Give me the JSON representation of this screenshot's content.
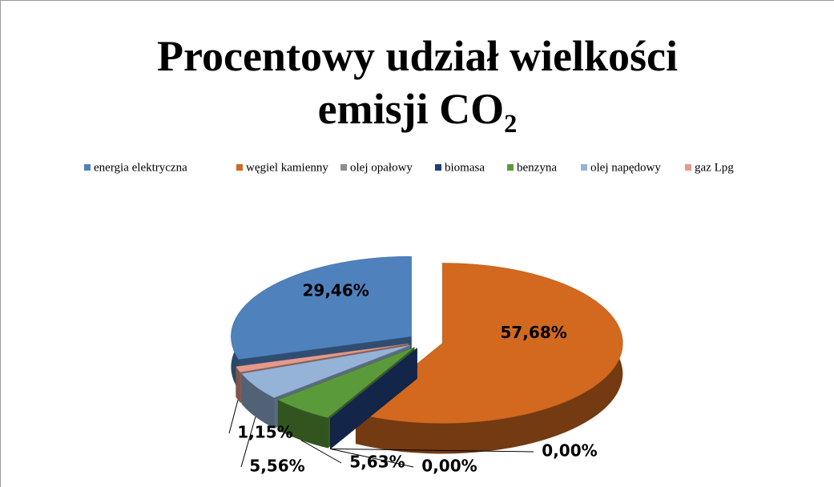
{
  "chart_data": {
    "type": "pie3d",
    "title": "Procentowy udział wielkości emisji CO₂",
    "categories": [
      "energia elektryczna",
      "węgiel kamienny",
      "olej opałowy",
      "biomasa",
      "benzyna",
      "olej napędowy",
      "gaz Lpg"
    ],
    "values": [
      29.46,
      57.68,
      0.0,
      0.0,
      5.63,
      5.56,
      1.15
    ],
    "value_labels": [
      "29,46%",
      "57,68%",
      "0,00%",
      "0,00%",
      "5,63%",
      "5,56%",
      "1,15%"
    ],
    "colors": [
      "#4f81bd",
      "#d2691e",
      "#8c8c8c",
      "#1f3d7a",
      "#5b9a3a",
      "#95b3d7",
      "#e39a8c"
    ],
    "legend": "top"
  }
}
